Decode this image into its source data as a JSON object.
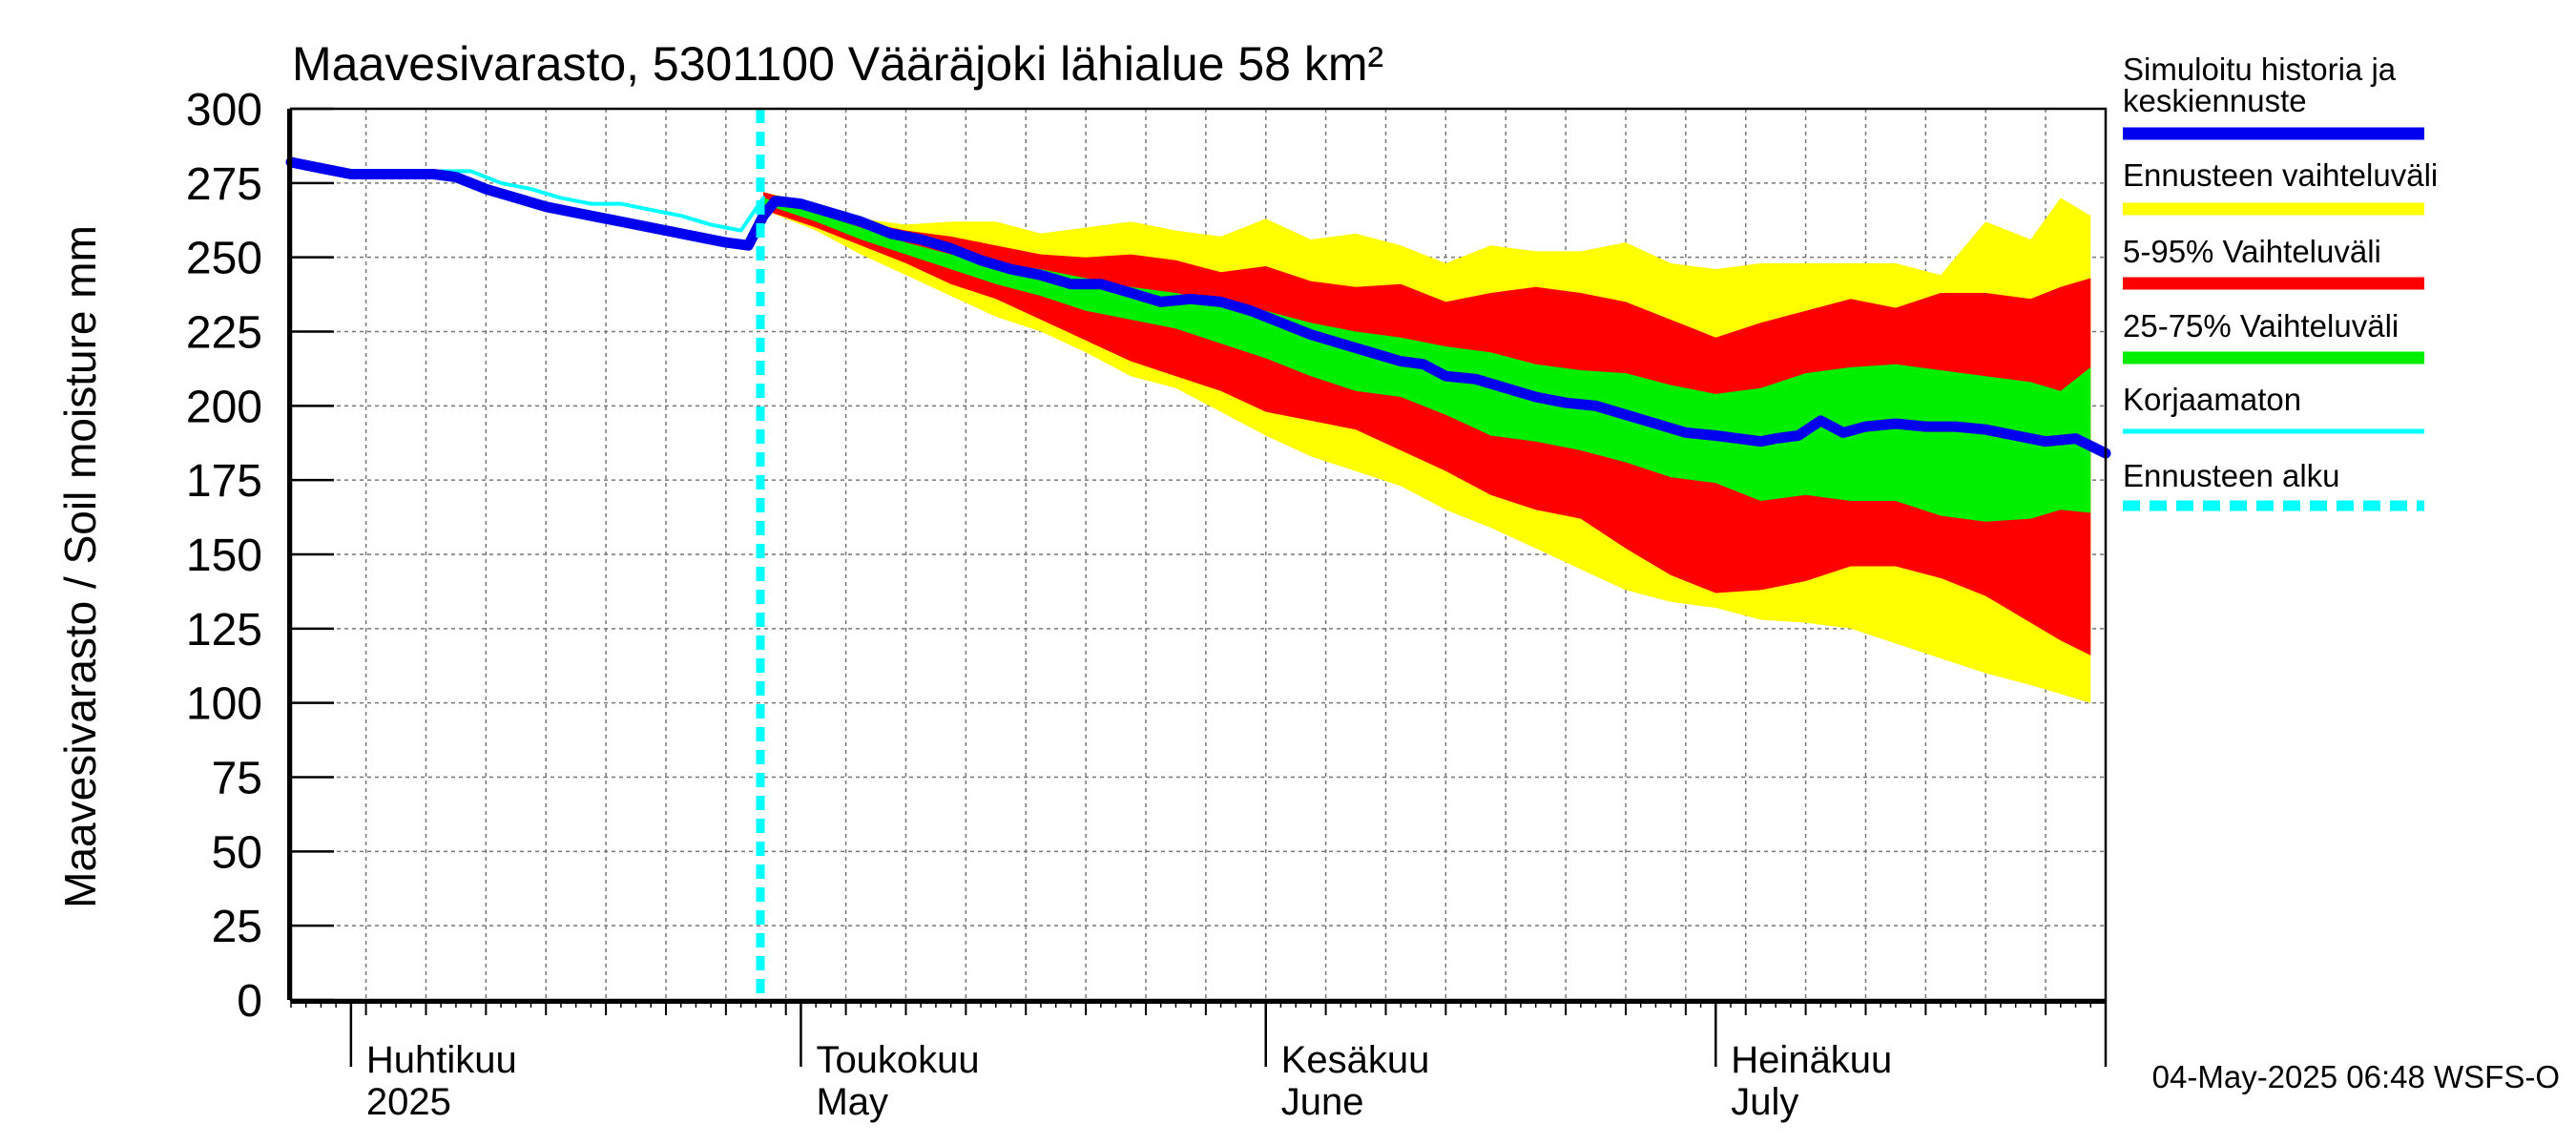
{
  "chart_data": {
    "type": "area",
    "title": "Maavesivarasto, 5301100 Vääräjoki lähialue 58 km²",
    "ylabel": "Maavesivarasto / Soil moisture   mm",
    "ylim": [
      0,
      300
    ],
    "yticks": [
      0,
      25,
      50,
      75,
      100,
      125,
      150,
      175,
      200,
      225,
      250,
      275,
      300
    ],
    "x_unit": "day of year 2025",
    "xlim": [
      87,
      208
    ],
    "month_labels": [
      {
        "day": 91,
        "fi": "Huhtikuu",
        "en": "2025"
      },
      {
        "day": 121,
        "fi": "Toukokuu",
        "en": "May"
      },
      {
        "day": 152,
        "fi": "Kesäkuu",
        "en": "June"
      },
      {
        "day": 182,
        "fi": "Heinäkuu",
        "en": "July"
      }
    ],
    "forecast_start_day": 118.3,
    "footer": "04-May-2025 06:48 WSFS-O",
    "legend": [
      {
        "label": "Simuloitu historia ja keskiennuste",
        "color": "#0000ee",
        "style": "solid"
      },
      {
        "label": "Ennusteen vaihteluväli",
        "color": "#ffff00",
        "style": "solid"
      },
      {
        "label": "5-95% Vaihteluväli",
        "color": "#ff0000",
        "style": "solid"
      },
      {
        "label": "25-75% Vaihteluväli",
        "color": "#00ee00",
        "style": "solid"
      },
      {
        "label": "Korjaamaton",
        "color": "#00ffff",
        "style": "solid"
      },
      {
        "label": "Ennusteen alku",
        "color": "#00ffff",
        "style": "dashed"
      }
    ],
    "series": [
      {
        "name": "Ennusteen vaihteluväli",
        "kind": "band",
        "color": "#ffff00",
        "x": [
          118.5,
          122,
          125,
          128,
          131,
          134,
          137,
          140,
          143,
          146,
          149,
          152,
          155,
          158,
          161,
          164,
          167,
          170,
          173,
          176,
          179,
          182,
          185,
          188,
          191,
          194,
          197,
          200,
          203,
          205,
          207
        ],
        "upper": [
          272,
          268,
          263,
          261,
          262,
          262,
          258,
          260,
          262,
          259,
          257,
          263,
          256,
          258,
          254,
          248,
          254,
          252,
          252,
          255,
          248,
          246,
          248,
          248,
          248,
          248,
          244,
          262,
          256,
          270,
          264
        ],
        "lower": [
          266,
          259,
          251,
          244,
          237,
          230,
          225,
          218,
          210,
          206,
          198,
          190,
          183,
          178,
          173,
          165,
          159,
          152,
          145,
          138,
          134,
          132,
          128,
          127,
          125,
          120,
          115,
          110,
          106,
          103,
          100
        ]
      },
      {
        "name": "5-95% Vaihteluväli",
        "kind": "band",
        "color": "#ff0000",
        "x": [
          118.5,
          122,
          125,
          128,
          131,
          134,
          137,
          140,
          143,
          146,
          149,
          152,
          155,
          158,
          161,
          164,
          167,
          170,
          173,
          176,
          179,
          182,
          185,
          188,
          191,
          194,
          197,
          200,
          203,
          205,
          207
        ],
        "upper": [
          272,
          267,
          262,
          259,
          257,
          254,
          251,
          250,
          251,
          249,
          245,
          247,
          242,
          240,
          241,
          235,
          238,
          240,
          238,
          235,
          229,
          223,
          228,
          232,
          236,
          233,
          238,
          238,
          236,
          240,
          243
        ],
        "lower": [
          266,
          260,
          254,
          248,
          241,
          236,
          229,
          222,
          215,
          210,
          205,
          198,
          195,
          192,
          185,
          178,
          170,
          165,
          162,
          152,
          143,
          137,
          138,
          141,
          146,
          146,
          142,
          136,
          127,
          121,
          116
        ]
      },
      {
        "name": "25-75% Vaihteluväli",
        "kind": "band",
        "color": "#00ee00",
        "x": [
          118.5,
          122,
          125,
          128,
          131,
          134,
          137,
          140,
          143,
          146,
          149,
          152,
          155,
          158,
          161,
          164,
          167,
          170,
          173,
          176,
          179,
          182,
          185,
          188,
          191,
          194,
          197,
          200,
          203,
          205,
          207
        ],
        "upper": [
          270,
          265,
          260,
          255,
          251,
          248,
          246,
          243,
          240,
          238,
          235,
          232,
          228,
          225,
          223,
          220,
          218,
          214,
          212,
          211,
          207,
          204,
          206,
          211,
          213,
          214,
          212,
          210,
          208,
          205,
          213
        ],
        "lower": [
          268,
          262,
          256,
          251,
          246,
          241,
          237,
          232,
          229,
          226,
          221,
          216,
          210,
          205,
          203,
          197,
          190,
          188,
          185,
          181,
          176,
          174,
          168,
          170,
          168,
          168,
          163,
          161,
          162,
          165,
          164
        ]
      },
      {
        "name": "Korjaamaton",
        "kind": "line",
        "color": "#00ffff",
        "x": [
          87,
          89,
          91,
          93,
          95,
          97,
          99,
          101,
          103,
          105,
          107,
          109,
          111,
          113,
          115,
          117,
          118.5
        ],
        "y": [
          283,
          281,
          279,
          278,
          278,
          279,
          279,
          275,
          273,
          270,
          268,
          268,
          266,
          264,
          261,
          259,
          270
        ]
      },
      {
        "name": "Simuloitu historia ja keskiennuste",
        "kind": "line",
        "color": "#0000ee",
        "x": [
          87,
          89,
          91,
          93,
          95,
          96.5,
          98,
          100,
          102,
          104,
          106,
          108,
          110,
          112,
          114,
          116,
          117.5,
          118.5,
          119.3,
          121,
          123,
          125,
          127,
          129,
          131,
          133,
          135,
          137,
          139,
          141,
          143,
          145,
          147,
          149,
          151,
          153,
          155,
          157,
          159,
          161,
          162.5,
          164,
          166,
          168,
          170,
          172,
          174,
          176,
          178,
          180,
          182,
          183.5,
          185,
          186,
          187.5,
          189,
          190.5,
          192,
          194,
          196,
          198,
          200,
          202,
          204,
          206,
          208
        ],
        "y": [
          282,
          280,
          278,
          278,
          278,
          278,
          277,
          273,
          270,
          267,
          265,
          263,
          261,
          259,
          257,
          255,
          254,
          264,
          269,
          268,
          265,
          262,
          258,
          256,
          253,
          249,
          246,
          244,
          241,
          241,
          238,
          235,
          236,
          235,
          232,
          228,
          224,
          221,
          218,
          215,
          214,
          210,
          209,
          206,
          203,
          201,
          200,
          197,
          194,
          191,
          190,
          189,
          188,
          189,
          190,
          195,
          191,
          193,
          194,
          193,
          193,
          192,
          190,
          188,
          189,
          184
        ]
      }
    ]
  }
}
